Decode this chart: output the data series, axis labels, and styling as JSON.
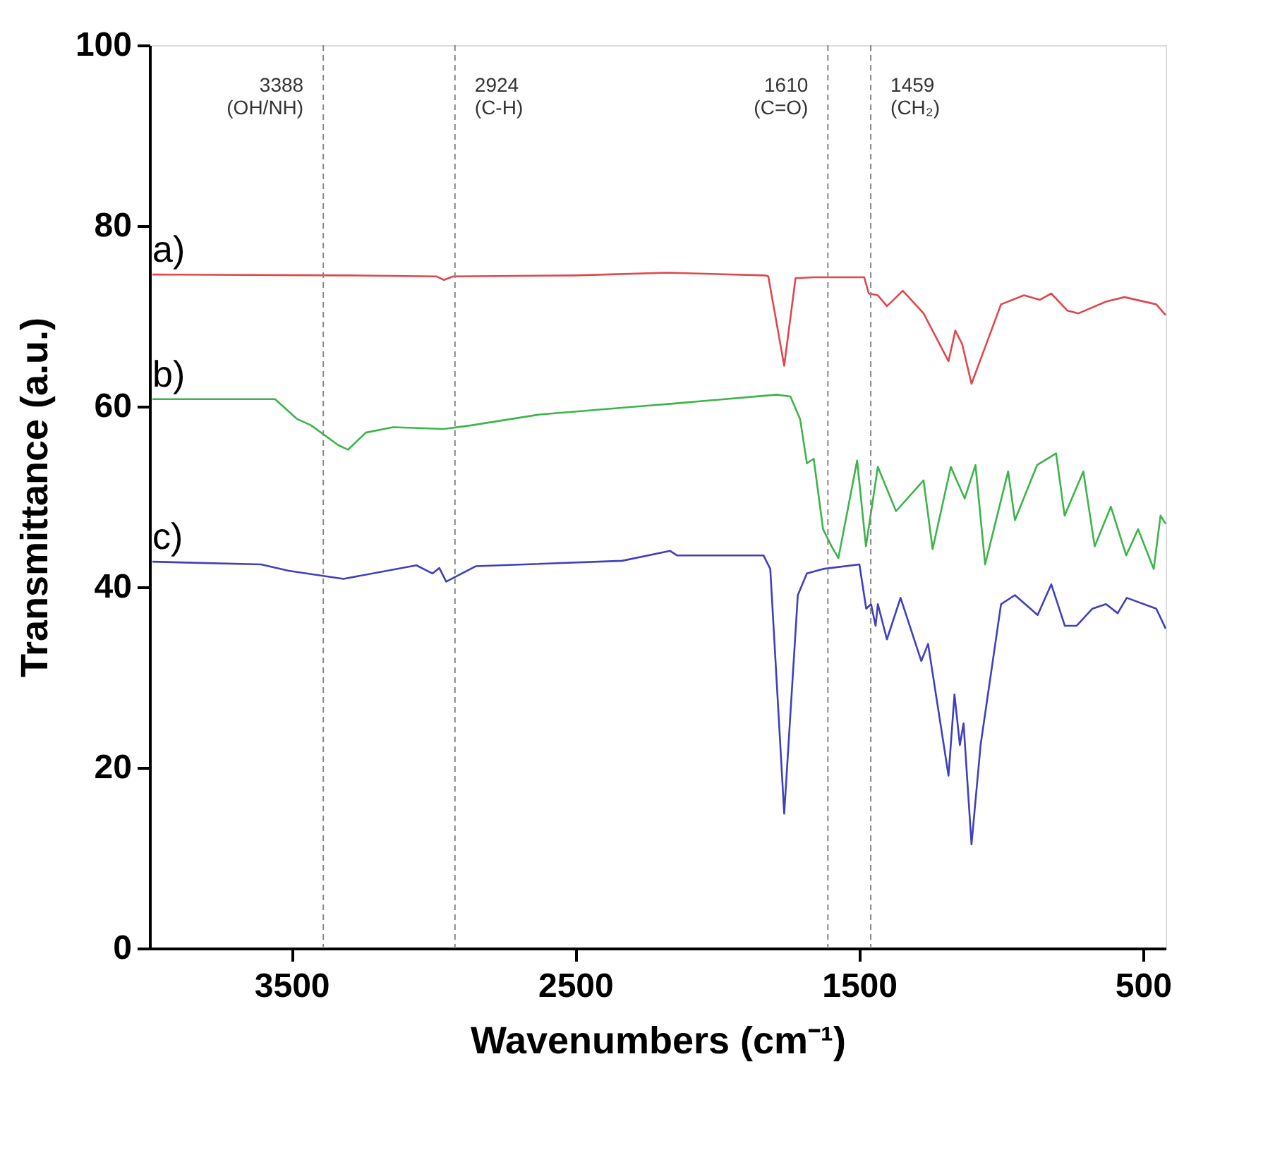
{
  "chart_data": {
    "type": "line",
    "xlabel": "Wavenumbers (cm⁻¹)",
    "ylabel": "Transmittance (a.u.)",
    "xlim": [
      4000,
      420
    ],
    "ylim": [
      0,
      100
    ],
    "xticks": [
      3500,
      2500,
      1500,
      500
    ],
    "yticks": [
      0,
      20,
      40,
      60,
      80,
      100
    ],
    "grid": false,
    "marker": "none",
    "line_style": "solid",
    "series": [
      {
        "name": "a)",
        "color": "#e0474c",
        "x": [
          3990,
          3300,
          2990,
          2963,
          2930,
          2500,
          2176,
          1830,
          1820,
          1764,
          1724,
          1660,
          1482,
          1466,
          1434,
          1402,
          1346,
          1273,
          1185,
          1161,
          1137,
          1104,
          1000,
          919,
          863,
          823,
          766,
          727,
          630,
          565,
          453,
          420
        ],
        "values": [
          74.6,
          74.5,
          74.4,
          74.0,
          74.4,
          74.5,
          74.8,
          74.5,
          74.4,
          64.5,
          74.2,
          74.3,
          74.3,
          72.5,
          72.3,
          71.1,
          72.8,
          70.3,
          65.0,
          68.4,
          66.9,
          62.5,
          71.3,
          72.3,
          71.8,
          72.5,
          70.6,
          70.3,
          71.6,
          72.1,
          71.3,
          70.1
        ]
      },
      {
        "name": "b)",
        "color": "#3cb44a",
        "x": [
          3990,
          3558,
          3480,
          3431,
          3335,
          3301,
          3238,
          3142,
          2963,
          2867,
          2625,
          2239,
          2157,
          1790,
          1742,
          1708,
          1684,
          1660,
          1627,
          1597,
          1573,
          1507,
          1476,
          1434,
          1370,
          1273,
          1241,
          1177,
          1128,
          1090,
          1056,
          975,
          951,
          873,
          806,
          776,
          710,
          670,
          613,
          559,
          517,
          462,
          438,
          420
        ],
        "values": [
          60.8,
          60.8,
          58.6,
          57.9,
          55.7,
          55.2,
          57.1,
          57.7,
          57.5,
          57.9,
          59.1,
          60.1,
          60.3,
          61.3,
          61.1,
          58.6,
          53.7,
          54.2,
          46.4,
          44.5,
          43.2,
          54.0,
          44.5,
          53.3,
          48.4,
          51.8,
          44.2,
          53.3,
          49.8,
          53.5,
          42.5,
          52.8,
          47.4,
          53.5,
          54.8,
          47.9,
          52.8,
          44.5,
          48.9,
          43.5,
          46.4,
          42.0,
          47.9,
          47.0
        ]
      },
      {
        "name": "c)",
        "color": "#3f3fbf",
        "x": [
          3990,
          3607,
          3510,
          3317,
          3060,
          3003,
          2979,
          2955,
          2851,
          2335,
          2166,
          2142,
          1837,
          1813,
          1764,
          1716,
          1684,
          1627,
          1499,
          1475,
          1458,
          1442,
          1434,
          1402,
          1354,
          1281,
          1257,
          1185,
          1164,
          1145,
          1132,
          1104,
          1072,
          1000,
          951,
          871,
          823,
          775,
          734,
          678,
          630,
          589,
          557,
          453,
          420
        ],
        "values": [
          42.8,
          42.5,
          41.8,
          40.9,
          42.4,
          41.5,
          42.1,
          40.6,
          42.3,
          42.9,
          44.0,
          43.5,
          43.5,
          42.0,
          14.9,
          39.1,
          41.5,
          42.0,
          42.5,
          37.6,
          38.1,
          35.7,
          38.1,
          34.2,
          38.8,
          31.8,
          33.7,
          19.1,
          28.1,
          22.5,
          24.9,
          11.5,
          22.5,
          38.1,
          39.1,
          36.9,
          40.3,
          35.7,
          35.7,
          37.6,
          38.1,
          37.1,
          38.8,
          37.6,
          35.4
        ]
      }
    ],
    "ref_lines": [
      {
        "axis": "x",
        "value": 3388,
        "label": "3388\n(OH/NH)",
        "color": "#888888",
        "line_style": "dashed"
      },
      {
        "axis": "x",
        "value": 2924,
        "label": "2924\n(C-H)",
        "color": "#888888",
        "line_style": "dashed"
      },
      {
        "axis": "x",
        "value": 1610,
        "label": "1610\n(C=O)",
        "color": "#888888",
        "line_style": "dashed"
      },
      {
        "axis": "x",
        "value": 1459,
        "label": "1459\n(CH₂)",
        "color": "#888888",
        "line_style": "dashed"
      }
    ]
  }
}
